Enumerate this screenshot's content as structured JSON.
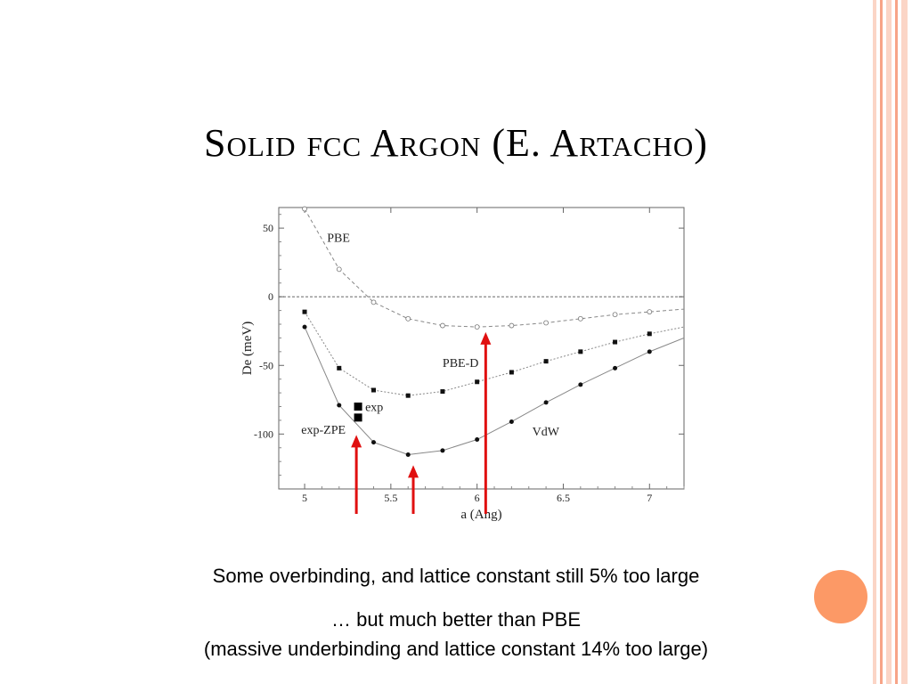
{
  "slide": {
    "title": "Solid fcc Argon (E. Artacho)",
    "captions": [
      "Some overbinding, and lattice constant still 5% too large",
      "… but much better than PBE",
      "(massive underbinding and lattice constant 14% too large)"
    ]
  },
  "colors": {
    "stripe_dark": "#f7a488",
    "stripe_light": "#fbd5c6",
    "accent_dot": "#fc9966",
    "arrow": "#e01010"
  },
  "chart_data": {
    "type": "line",
    "xlabel": "a (Ang)",
    "ylabel": "De (meV)",
    "xlim": [
      4.85,
      7.2
    ],
    "ylim": [
      -140,
      65
    ],
    "xticks": [
      "5",
      "5.5",
      "6",
      "6.5",
      "7"
    ],
    "yticks": [
      "50",
      "0",
      "-50",
      "-100"
    ],
    "zero_line": true,
    "series": [
      {
        "name": "PBE",
        "marker": "open-circle",
        "line": "dashed",
        "x": [
          5.0,
          5.2,
          5.4,
          5.6,
          5.8,
          6.0,
          6.2,
          6.4,
          6.6,
          6.8,
          7.0,
          7.2
        ],
        "y": [
          64,
          20,
          -4,
          -16,
          -21,
          -22,
          -21,
          -19,
          -16,
          -13,
          -11,
          -9
        ]
      },
      {
        "name": "PBE-D",
        "marker": "filled-square",
        "line": "dotted",
        "x": [
          5.0,
          5.2,
          5.4,
          5.6,
          5.8,
          6.0,
          6.2,
          6.4,
          6.6,
          6.8,
          7.0,
          7.2
        ],
        "y": [
          -11,
          -52,
          -68,
          -72,
          -69,
          -62,
          -55,
          -47,
          -40,
          -33,
          -27,
          -22
        ]
      },
      {
        "name": "VdW",
        "marker": "filled-circle",
        "line": "solid",
        "x": [
          5.0,
          5.2,
          5.4,
          5.6,
          5.8,
          6.0,
          6.2,
          6.4,
          6.6,
          6.8,
          7.0,
          7.2
        ],
        "y": [
          -22,
          -79,
          -106,
          -115,
          -112,
          -104,
          -91,
          -77,
          -64,
          -52,
          -40,
          -30
        ]
      }
    ],
    "exp_points": [
      {
        "name": "exp",
        "x": 5.31,
        "y": -80
      },
      {
        "name": "exp-ZPE",
        "x": 5.31,
        "y": -88
      }
    ],
    "arrows_x": [
      5.3,
      5.63,
      6.05
    ]
  }
}
